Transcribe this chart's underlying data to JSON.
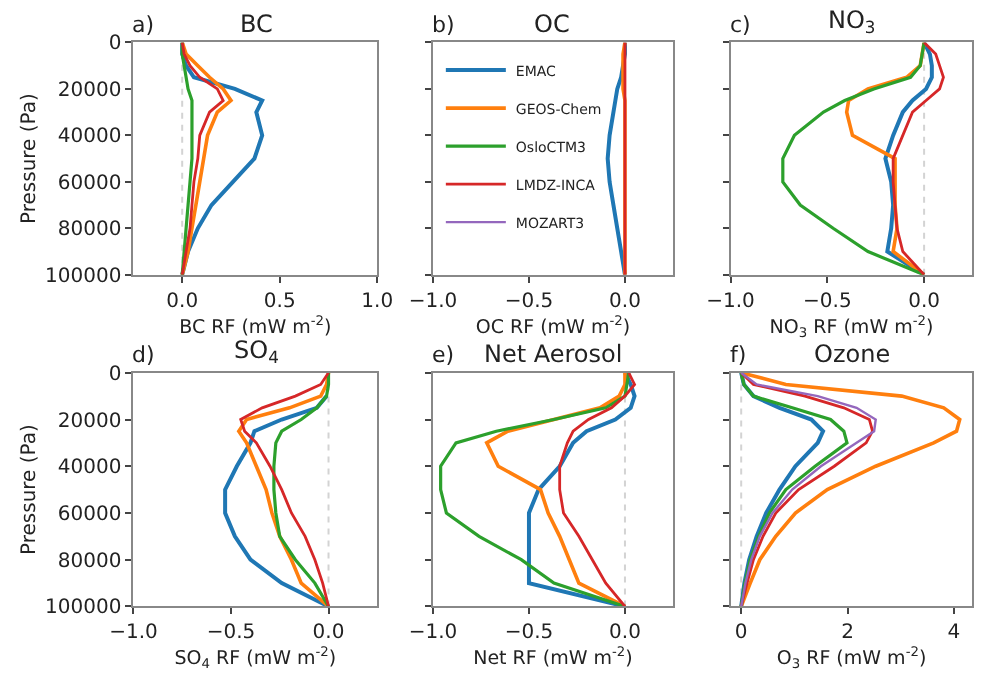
{
  "chart_data": [
    {
      "type": "line",
      "orientation": "horizontal",
      "title": "BC",
      "xlabel": "BC RF (mW m$^{-2}$)",
      "ylabel": "Pressure (Pa)",
      "annotations": [
        "a)"
      ],
      "x": [
        0,
        5000,
        10000,
        15000,
        20000,
        25000,
        30000,
        40000,
        50000,
        60000,
        70000,
        80000,
        90000,
        100000
      ],
      "xlim": [
        -0.25,
        1.0
      ],
      "xticks": [
        {
          "value": 0,
          "label": "0.0"
        },
        0.5,
        {
          "value": 1,
          "label": "1.0"
        }
      ],
      "ylim": [
        100000,
        0
      ],
      "yticks": [
        0,
        20000,
        40000,
        60000,
        80000,
        100000
      ],
      "ref_lines": [
        {
          "axis": "x",
          "value": 0,
          "color": "#d3d3d3",
          "line_style": "dotted"
        }
      ],
      "series": [
        {
          "color": "#1f77b4",
          "values": [
            0,
            0,
            0.02,
            0.06,
            0.27,
            0.41,
            0.38,
            0.41,
            0.37,
            0.26,
            0.15,
            0.08,
            0.03,
            0
          ]
        },
        {
          "color": "#ff7f0e",
          "values": [
            0,
            0.02,
            0.08,
            0.14,
            0.21,
            0.25,
            0.18,
            0.13,
            0.11,
            0.09,
            0.07,
            0.05,
            0.03,
            0
          ]
        },
        {
          "color": "#2ca02c",
          "values": [
            0,
            0,
            0.01,
            0.02,
            0.03,
            0.05,
            0.05,
            0.05,
            0.05,
            0.04,
            0.03,
            0.02,
            0.01,
            0
          ]
        },
        {
          "color": "#d62728",
          "values": [
            0,
            0.01,
            0.04,
            0.09,
            0.18,
            0.21,
            0.14,
            0.09,
            0.08,
            0.06,
            0.05,
            0.04,
            0.02,
            0
          ]
        }
      ]
    },
    {
      "type": "line",
      "orientation": "horizontal",
      "title": "OC",
      "xlabel": "OC RF (mW m$^{-2}$)",
      "annotations": [
        "b)"
      ],
      "x": [
        0,
        5000,
        10000,
        15000,
        20000,
        25000,
        30000,
        40000,
        50000,
        60000,
        70000,
        80000,
        90000,
        100000
      ],
      "xlim": [
        -1.0,
        0.25
      ],
      "xticks": [
        {
          "value": -1,
          "label": "−1.0"
        },
        {
          "value": -0.5,
          "label": "−0.5"
        },
        {
          "value": 0,
          "label": "0.0"
        }
      ],
      "ylim": [
        100000,
        0
      ],
      "yticks": [
        0,
        20000,
        40000,
        60000,
        80000,
        100000
      ],
      "tick_labels": "x",
      "legend": "top left",
      "ref_lines": [
        {
          "axis": "x",
          "value": 0,
          "color": "#d3d3d3",
          "line_style": "dotted"
        }
      ],
      "series": [
        {
          "name": "EMAC",
          "color": "#1f77b4",
          "values": [
            0,
            0,
            -0.01,
            -0.02,
            -0.04,
            -0.05,
            -0.06,
            -0.08,
            -0.09,
            -0.08,
            -0.06,
            -0.04,
            -0.02,
            0
          ]
        },
        {
          "name": "GEOS-Chem",
          "color": "#ff7f0e",
          "values": [
            0,
            -0.01,
            -0.01,
            -0.01,
            -0.01,
            0,
            0,
            0,
            0,
            0,
            0,
            0,
            0,
            0
          ]
        },
        {
          "name": "OsloCTM3",
          "color": "#2ca02c",
          "values": [
            null,
            null,
            null,
            null,
            null,
            null,
            null,
            null,
            null,
            null,
            null,
            null,
            null,
            null
          ]
        },
        {
          "name": "LMDZ-INCA",
          "color": "#d62728",
          "values": [
            0,
            0,
            0,
            0,
            0,
            0,
            0,
            0,
            0,
            0,
            0,
            0,
            0,
            0
          ]
        },
        {
          "name": "MOZART3",
          "color": "#9467bd",
          "values": [
            null,
            null,
            null,
            null,
            null,
            null,
            null,
            null,
            null,
            null,
            null,
            null,
            null,
            null
          ]
        }
      ]
    },
    {
      "type": "line",
      "orientation": "horizontal",
      "title": "NO$_{3}$",
      "xlabel": "NO$_{3}$ RF (mW m$^{-2}$)",
      "annotations": [
        "c)"
      ],
      "x": [
        0,
        5000,
        10000,
        15000,
        20000,
        25000,
        30000,
        40000,
        50000,
        60000,
        70000,
        80000,
        90000,
        100000
      ],
      "xlim": [
        -1.0,
        0.25
      ],
      "xticks": [
        {
          "value": -1,
          "label": "−1.0"
        },
        {
          "value": -0.5,
          "label": "−0.5"
        },
        {
          "value": 0,
          "label": "0.0"
        }
      ],
      "ylim": [
        100000,
        0
      ],
      "yticks": [
        0,
        20000,
        40000,
        60000,
        80000,
        100000
      ],
      "tick_labels": "x",
      "ref_lines": [
        {
          "axis": "x",
          "value": 0,
          "color": "#d3d3d3",
          "line_style": "dotted"
        }
      ],
      "series": [
        {
          "color": "#1f77b4",
          "values": [
            0,
            0.03,
            0.04,
            0.04,
            0.01,
            -0.06,
            -0.11,
            -0.16,
            -0.2,
            -0.17,
            -0.16,
            -0.17,
            -0.19,
            0
          ]
        },
        {
          "color": "#ff7f0e",
          "values": [
            0,
            -0.01,
            -0.02,
            -0.09,
            -0.29,
            -0.39,
            -0.4,
            -0.37,
            -0.15,
            -0.15,
            -0.15,
            -0.14,
            -0.16,
            0
          ]
        },
        {
          "color": "#2ca02c",
          "values": [
            0,
            -0.01,
            -0.02,
            -0.07,
            -0.26,
            -0.41,
            -0.52,
            -0.67,
            -0.73,
            -0.73,
            -0.64,
            -0.47,
            -0.29,
            0
          ]
        },
        {
          "color": "#d62728",
          "values": [
            0,
            0.06,
            0.08,
            0.1,
            0.08,
            0.01,
            -0.06,
            -0.11,
            -0.16,
            -0.16,
            -0.15,
            -0.14,
            -0.11,
            0
          ]
        }
      ]
    },
    {
      "type": "line",
      "orientation": "horizontal",
      "title": "SO$_{4}$",
      "xlabel": "SO$_{4}$ RF (mW m$^{-2}$)",
      "ylabel": "Pressure (Pa)",
      "annotations": [
        "d)"
      ],
      "x": [
        0,
        5000,
        10000,
        15000,
        20000,
        25000,
        30000,
        40000,
        50000,
        60000,
        70000,
        80000,
        90000,
        100000
      ],
      "xlim": [
        -1.0,
        0.25
      ],
      "xticks": [
        {
          "value": -1,
          "label": "−1.0"
        },
        {
          "value": -0.5,
          "label": "−0.5"
        },
        {
          "value": 0,
          "label": "0.0"
        }
      ],
      "ylim": [
        100000,
        0
      ],
      "yticks": [
        0,
        20000,
        40000,
        60000,
        80000,
        100000
      ],
      "ref_lines": [
        {
          "axis": "x",
          "value": 0,
          "color": "#d3d3d3",
          "line_style": "dotted"
        }
      ],
      "series": [
        {
          "color": "#1f77b4",
          "values": [
            null,
            null,
            -0.01,
            -0.06,
            -0.24,
            -0.38,
            -0.4,
            -0.47,
            -0.53,
            -0.53,
            -0.48,
            -0.4,
            -0.24,
            0
          ]
        },
        {
          "color": "#ff7f0e",
          "values": [
            0,
            -0.01,
            -0.04,
            -0.2,
            -0.42,
            -0.46,
            -0.42,
            -0.37,
            -0.32,
            -0.29,
            -0.25,
            -0.19,
            -0.14,
            0
          ]
        },
        {
          "color": "#2ca02c",
          "values": [
            0,
            0,
            -0.01,
            -0.06,
            -0.14,
            -0.24,
            -0.27,
            -0.28,
            -0.28,
            -0.27,
            -0.25,
            -0.17,
            -0.07,
            0
          ]
        },
        {
          "color": "#d62728",
          "values": [
            0,
            -0.04,
            -0.17,
            -0.34,
            -0.45,
            -0.43,
            -0.37,
            -0.3,
            -0.24,
            -0.19,
            -0.12,
            -0.07,
            -0.03,
            0
          ]
        }
      ]
    },
    {
      "type": "line",
      "orientation": "horizontal",
      "title": "Net Aerosol",
      "xlabel": "Net RF (mW m$^{-2}$)",
      "annotations": [
        "e)"
      ],
      "x": [
        0,
        5000,
        10000,
        15000,
        20000,
        25000,
        30000,
        40000,
        50000,
        60000,
        70000,
        80000,
        90000,
        100000
      ],
      "xlim": [
        -1.0,
        0.25
      ],
      "xticks": [
        {
          "value": -1,
          "label": "−1.0"
        },
        {
          "value": -0.5,
          "label": "−0.5"
        },
        {
          "value": 0,
          "label": "0.0"
        }
      ],
      "ylim": [
        100000,
        0
      ],
      "yticks": [
        0,
        20000,
        40000,
        60000,
        80000,
        100000
      ],
      "tick_labels": "x",
      "ref_lines": [
        {
          "axis": "x",
          "value": 0,
          "color": "#d3d3d3",
          "line_style": "dotted"
        }
      ],
      "series": [
        {
          "color": "#1f77b4",
          "values": [
            0,
            0.03,
            0.05,
            0.03,
            -0.05,
            -0.2,
            -0.27,
            -0.34,
            -0.45,
            -0.5,
            -0.5,
            -0.5,
            -0.5,
            0
          ]
        },
        {
          "color": "#ff7f0e",
          "values": [
            0,
            0,
            -0.03,
            -0.13,
            -0.37,
            -0.61,
            -0.72,
            -0.66,
            -0.44,
            -0.4,
            -0.34,
            -0.29,
            -0.24,
            0
          ]
        },
        {
          "color": "#2ca02c",
          "values": [
            0.02,
            0.01,
            0,
            -0.1,
            -0.37,
            -0.67,
            -0.88,
            -0.96,
            -0.96,
            -0.93,
            -0.76,
            -0.54,
            -0.37,
            0
          ]
        },
        {
          "color": "#d62728",
          "values": [
            0.02,
            0.05,
            0,
            -0.07,
            -0.19,
            -0.27,
            -0.3,
            -0.34,
            -0.34,
            -0.32,
            -0.24,
            -0.17,
            -0.1,
            0
          ]
        }
      ]
    },
    {
      "type": "line",
      "orientation": "horizontal",
      "title": "Ozone",
      "xlabel": "O$_{3}$ RF (mW m$^{-2}$)",
      "annotations": [
        "f)"
      ],
      "x": [
        0,
        5000,
        10000,
        15000,
        20000,
        25000,
        30000,
        40000,
        50000,
        60000,
        70000,
        80000,
        90000,
        100000
      ],
      "xlim": [
        -0.2,
        4.35
      ],
      "xticks": [
        0,
        2,
        4
      ],
      "ylim": [
        100000,
        0
      ],
      "yticks": [
        0,
        20000,
        40000,
        60000,
        80000,
        100000
      ],
      "tick_labels": "x",
      "ref_lines": [
        {
          "axis": "x",
          "value": 0,
          "color": "#d3d3d3",
          "line_style": "dotted"
        }
      ],
      "series": [
        {
          "color": "#1f77b4",
          "values": [
            0,
            0.05,
            0.23,
            0.72,
            1.32,
            1.54,
            1.44,
            1.02,
            0.72,
            0.47,
            0.29,
            0.15,
            0.06,
            0
          ]
        },
        {
          "color": "#ff7f0e",
          "values": [
            0,
            0.84,
            3.02,
            3.81,
            4.11,
            4.05,
            3.62,
            2.53,
            1.62,
            1.02,
            0.65,
            0.35,
            0.17,
            0
          ]
        },
        {
          "color": "#2ca02c",
          "values": [
            0,
            0.05,
            0.23,
            0.96,
            1.68,
            1.93,
            1.99,
            1.39,
            0.84,
            0.53,
            0.33,
            0.17,
            0.07,
            0
          ]
        },
        {
          "color": "#d62728",
          "values": [
            0,
            0.23,
            1.2,
            1.93,
            2.41,
            2.47,
            2.35,
            1.75,
            1.08,
            0.65,
            0.41,
            0.23,
            0.11,
            0
          ]
        },
        {
          "color": "#9467bd",
          "values": [
            0,
            0.29,
            1.44,
            2.17,
            2.53,
            2.5,
            2.17,
            1.5,
            0.96,
            0.59,
            0.35,
            0.19,
            0.08,
            0
          ]
        }
      ]
    }
  ]
}
